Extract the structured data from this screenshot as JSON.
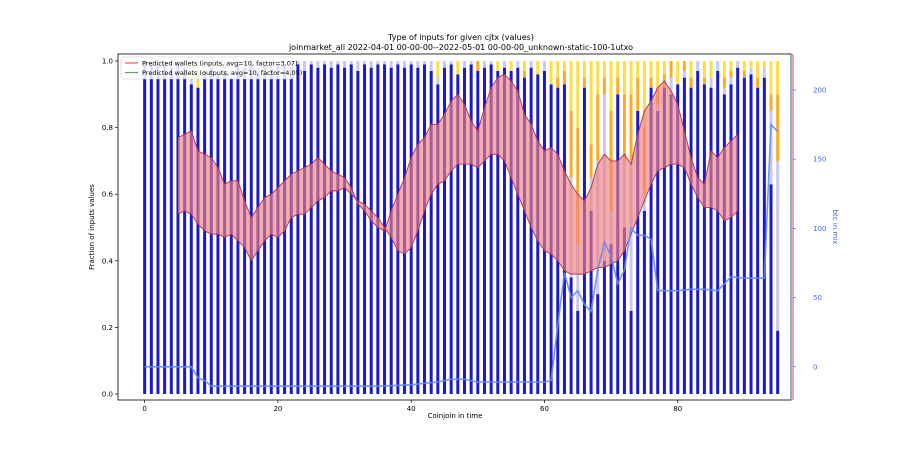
{
  "chart_data": {
    "type": "bar",
    "title": "Type of inputs for given cjtx (values)",
    "subtitle": "joinmarket_all 2022-04-01 00-00-00--2022-05-01 00-00-00_unknown-static-100-1utxo",
    "xlabel": "Coinjoin in time",
    "ylabel": "Fraction of inputs values",
    "y2label": "btc in mix",
    "xlim": [
      -4,
      97
    ],
    "ylim": [
      0,
      1.0
    ],
    "y2lim": [
      -24,
      226
    ],
    "x_ticks": [
      "0",
      "20",
      "40",
      "60",
      "80"
    ],
    "x_tick_values": [
      0,
      20,
      40,
      60,
      80
    ],
    "y_ticks": [
      "0.0",
      "0.2",
      "0.4",
      "0.6",
      "0.8",
      "1.0"
    ],
    "y_tick_values": [
      0,
      0.2,
      0.4,
      0.6,
      0.8,
      1.0
    ],
    "y2_ticks": [
      "0",
      "50",
      "100",
      "150",
      "200"
    ],
    "y2_tick_values": [
      0,
      50,
      100,
      150,
      200
    ],
    "legend": {
      "placement": "top-left",
      "entries": [
        {
          "label": "Predicted wallets (inputs, avg=10, factor=3.07)",
          "color": "#e06060"
        },
        {
          "label": "Predicted wallets (outputs, avg=10, factor=4.05)",
          "color": "#55aa55"
        }
      ]
    },
    "colors": {
      "blue": "#1a1acc",
      "lavender": "#c8c8f0",
      "orange": "#ffaa22",
      "yellow": "#ffdd44",
      "red": "#cc2222",
      "band_fill": "#f08080",
      "band_edge": "#aa3355",
      "btc_line": "#6688ee"
    },
    "bars": [
      {
        "x": 0,
        "blue": 1.0,
        "lav": 0,
        "org": 0,
        "yel": 0
      },
      {
        "x": 1,
        "blue": 0.99,
        "lav": 0.01,
        "org": 0,
        "yel": 0
      },
      {
        "x": 2,
        "blue": 0.99,
        "lav": 0.01,
        "org": 0,
        "yel": 0
      },
      {
        "x": 3,
        "blue": 0.99,
        "lav": 0.01,
        "org": 0,
        "yel": 0
      },
      {
        "x": 4,
        "blue": 0.98,
        "lav": 0.02,
        "org": 0,
        "yel": 0
      },
      {
        "x": 5,
        "blue": 0.99,
        "lav": 0.01,
        "org": 0,
        "yel": 0
      },
      {
        "x": 6,
        "blue": 0.98,
        "lav": 0.02,
        "org": 0,
        "yel": 0
      },
      {
        "x": 7,
        "blue": 0.93,
        "lav": 0.02,
        "org": 0,
        "yel": 0.05
      },
      {
        "x": 8,
        "blue": 0.92,
        "lav": 0,
        "org": 0,
        "yel": 0.08
      },
      {
        "x": 9,
        "blue": 0.97,
        "lav": 0.03,
        "org": 0,
        "yel": 0
      },
      {
        "x": 10,
        "blue": 0.98,
        "lav": 0.02,
        "org": 0,
        "yel": 0
      },
      {
        "x": 11,
        "blue": 0.96,
        "lav": 0.02,
        "org": 0,
        "yel": 0.02
      },
      {
        "x": 12,
        "blue": 0.97,
        "lav": 0.03,
        "org": 0,
        "yel": 0
      },
      {
        "x": 13,
        "blue": 0.95,
        "lav": 0.05,
        "org": 0,
        "yel": 0
      },
      {
        "x": 14,
        "blue": 0.99,
        "lav": 0.01,
        "org": 0,
        "yel": 0
      },
      {
        "x": 15,
        "blue": 0.98,
        "lav": 0.02,
        "org": 0,
        "yel": 0
      },
      {
        "x": 16,
        "blue": 0.99,
        "lav": 0.01,
        "org": 0,
        "yel": 0
      },
      {
        "x": 17,
        "blue": 0.97,
        "lav": 0.03,
        "org": 0,
        "yel": 0
      },
      {
        "x": 18,
        "blue": 0.99,
        "lav": 0.01,
        "org": 0,
        "yel": 0
      },
      {
        "x": 19,
        "blue": 0.98,
        "lav": 0.02,
        "org": 0,
        "yel": 0
      },
      {
        "x": 20,
        "blue": 0.99,
        "lav": 0.01,
        "org": 0,
        "yel": 0
      },
      {
        "x": 21,
        "blue": 0.99,
        "lav": 0.01,
        "org": 0,
        "yel": 0
      },
      {
        "x": 22,
        "blue": 0.98,
        "lav": 0.02,
        "org": 0,
        "yel": 0
      },
      {
        "x": 23,
        "blue": 0.99,
        "lav": 0.01,
        "org": 0,
        "yel": 0
      },
      {
        "x": 24,
        "blue": 0.97,
        "lav": 0.03,
        "org": 0,
        "yel": 0
      },
      {
        "x": 25,
        "blue": 0.99,
        "lav": 0.01,
        "org": 0,
        "yel": 0
      },
      {
        "x": 26,
        "blue": 0.98,
        "lav": 0.02,
        "org": 0,
        "yel": 0
      },
      {
        "x": 27,
        "blue": 0.99,
        "lav": 0.01,
        "org": 0,
        "yel": 0
      },
      {
        "x": 28,
        "blue": 0.98,
        "lav": 0.02,
        "org": 0,
        "yel": 0
      },
      {
        "x": 29,
        "blue": 0.99,
        "lav": 0.01,
        "org": 0,
        "yel": 0
      },
      {
        "x": 30,
        "blue": 0.98,
        "lav": 0.02,
        "org": 0,
        "yel": 0
      },
      {
        "x": 31,
        "blue": 0.99,
        "lav": 0.01,
        "org": 0,
        "yel": 0
      },
      {
        "x": 32,
        "blue": 0.97,
        "lav": 0.03,
        "org": 0,
        "yel": 0
      },
      {
        "x": 33,
        "blue": 0.99,
        "lav": 0.01,
        "org": 0,
        "yel": 0
      },
      {
        "x": 34,
        "blue": 0.98,
        "lav": 0.02,
        "org": 0,
        "yel": 0
      },
      {
        "x": 35,
        "blue": 0.99,
        "lav": 0.01,
        "org": 0,
        "yel": 0
      },
      {
        "x": 36,
        "blue": 0.99,
        "lav": 0.01,
        "org": 0,
        "yel": 0
      },
      {
        "x": 37,
        "blue": 0.98,
        "lav": 0.02,
        "org": 0,
        "yel": 0
      },
      {
        "x": 38,
        "blue": 0.99,
        "lav": 0.01,
        "org": 0,
        "yel": 0
      },
      {
        "x": 39,
        "blue": 0.98,
        "lav": 0.02,
        "org": 0,
        "yel": 0
      },
      {
        "x": 40,
        "blue": 0.99,
        "lav": 0.01,
        "org": 0,
        "yel": 0
      },
      {
        "x": 41,
        "blue": 0.98,
        "lav": 0.02,
        "org": 0,
        "yel": 0
      },
      {
        "x": 42,
        "blue": 0.99,
        "lav": 0.01,
        "org": 0,
        "yel": 0
      },
      {
        "x": 43,
        "blue": 0.97,
        "lav": 0.03,
        "org": 0,
        "yel": 0
      },
      {
        "x": 44,
        "blue": 0.93,
        "lav": 0.02,
        "org": 0,
        "yel": 0.05
      },
      {
        "x": 45,
        "blue": 0.98,
        "lav": 0.02,
        "org": 0,
        "yel": 0
      },
      {
        "x": 46,
        "blue": 0.99,
        "lav": 0.01,
        "org": 0,
        "yel": 0
      },
      {
        "x": 47,
        "blue": 0.96,
        "lav": 0,
        "org": 0,
        "yel": 0.04
      },
      {
        "x": 48,
        "blue": 0.98,
        "lav": 0.02,
        "org": 0,
        "yel": 0
      },
      {
        "x": 49,
        "blue": 0.99,
        "lav": 0.01,
        "org": 0,
        "yel": 0
      },
      {
        "x": 50,
        "blue": 0.97,
        "lav": 0,
        "org": 0.03,
        "yel": 0
      },
      {
        "x": 51,
        "blue": 0.98,
        "lav": 0.02,
        "org": 0,
        "yel": 0
      },
      {
        "x": 52,
        "blue": 0.99,
        "lav": 0.01,
        "org": 0,
        "yel": 0
      },
      {
        "x": 53,
        "blue": 0.97,
        "lav": 0,
        "org": 0,
        "yel": 0.03
      },
      {
        "x": 54,
        "blue": 0.98,
        "lav": 0.02,
        "org": 0,
        "yel": 0
      },
      {
        "x": 55,
        "blue": 0.97,
        "lav": 0,
        "org": 0,
        "yel": 0.03
      },
      {
        "x": 56,
        "blue": 0.98,
        "lav": 0.02,
        "org": 0,
        "yel": 0
      },
      {
        "x": 57,
        "blue": 0.95,
        "lav": 0,
        "org": 0.02,
        "yel": 0.03
      },
      {
        "x": 58,
        "blue": 0.98,
        "lav": 0.02,
        "org": 0,
        "yel": 0
      },
      {
        "x": 59,
        "blue": 0.96,
        "lav": 0,
        "org": 0,
        "yel": 0.04
      },
      {
        "x": 60,
        "blue": 0.97,
        "lav": 0.03,
        "org": 0,
        "yel": 0
      },
      {
        "x": 61,
        "blue": 0.93,
        "lav": 0,
        "org": 0,
        "yel": 0.07
      },
      {
        "x": 62,
        "blue": 0.92,
        "lav": 0,
        "org": 0.03,
        "yel": 0.05
      },
      {
        "x": 63,
        "blue": 0.93,
        "lav": 0,
        "org": 0.04,
        "yel": 0.03
      },
      {
        "x": 64,
        "blue": 0.35,
        "lav": 0.3,
        "org": 0.2,
        "yel": 0.15
      },
      {
        "x": 65,
        "blue": 0.25,
        "lav": 0.2,
        "org": 0.35,
        "yel": 0.2
      },
      {
        "x": 66,
        "blue": 0.92,
        "lav": 0,
        "org": 0.03,
        "yel": 0.05
      },
      {
        "x": 67,
        "blue": 0.55,
        "lav": 0.1,
        "org": 0.1,
        "yel": 0.25
      },
      {
        "x": 68,
        "blue": 0.3,
        "lav": 0.4,
        "org": 0.2,
        "yel": 0.1
      },
      {
        "x": 69,
        "blue": 0.4,
        "lav": 0.5,
        "org": 0.05,
        "yel": 0.05
      },
      {
        "x": 70,
        "blue": 0.45,
        "lav": 0.1,
        "org": 0.3,
        "yel": 0.15
      },
      {
        "x": 71,
        "blue": 0.9,
        "lav": 0,
        "org": 0.05,
        "yel": 0.05
      },
      {
        "x": 72,
        "blue": 0.5,
        "lav": 0.2,
        "org": 0.2,
        "yel": 0.1
      },
      {
        "x": 73,
        "blue": 0.25,
        "lav": 0.45,
        "org": 0.2,
        "yel": 0.1
      },
      {
        "x": 74,
        "blue": 0.85,
        "lav": 0,
        "org": 0.1,
        "yel": 0.05
      },
      {
        "x": 75,
        "blue": 0.55,
        "lav": 0.05,
        "org": 0.2,
        "yel": 0.2
      },
      {
        "x": 76,
        "blue": 0.92,
        "lav": 0,
        "org": 0.03,
        "yel": 0.05
      },
      {
        "x": 77,
        "blue": 0.85,
        "lav": 0.02,
        "org": 0.05,
        "yel": 0.08
      },
      {
        "x": 78,
        "blue": 0.92,
        "lav": 0,
        "org": 0.04,
        "yel": 0.04
      },
      {
        "x": 79,
        "blue": 0.9,
        "lav": 0.05,
        "org": 0.05,
        "yel": 0
      },
      {
        "x": 80,
        "blue": 0.93,
        "lav": 0,
        "org": 0,
        "yel": 0.07
      },
      {
        "x": 81,
        "blue": 0.95,
        "lav": 0.02,
        "org": 0.03,
        "yel": 0
      },
      {
        "x": 82,
        "blue": 0.92,
        "lav": 0,
        "org": 0.03,
        "yel": 0.05
      },
      {
        "x": 83,
        "blue": 0.97,
        "lav": 0.03,
        "org": 0,
        "yel": 0
      },
      {
        "x": 84,
        "blue": 0.93,
        "lav": 0,
        "org": 0.02,
        "yel": 0.05
      },
      {
        "x": 85,
        "blue": 0.92,
        "lav": 0.03,
        "org": 0,
        "yel": 0.05
      },
      {
        "x": 86,
        "blue": 0.97,
        "lav": 0.03,
        "org": 0,
        "yel": 0
      },
      {
        "x": 87,
        "blue": 0.9,
        "lav": 0.02,
        "org": 0.03,
        "yel": 0.05
      },
      {
        "x": 88,
        "blue": 0.93,
        "lav": 0.02,
        "org": 0.02,
        "yel": 0.03
      },
      {
        "x": 89,
        "blue": 0.98,
        "lav": 0.02,
        "org": 0,
        "yel": 0
      },
      {
        "x": 90,
        "blue": 0.95,
        "lav": 0,
        "org": 0.02,
        "yel": 0.03
      },
      {
        "x": 91,
        "blue": 0.96,
        "lav": 0.02,
        "org": 0,
        "yel": 0.02
      },
      {
        "x": 92,
        "blue": 0.92,
        "lav": 0,
        "org": 0.03,
        "yel": 0.05
      },
      {
        "x": 93,
        "blue": 0.95,
        "lav": 0.03,
        "org": 0,
        "yel": 0.02
      },
      {
        "x": 94,
        "blue": 0.63,
        "lav": 0.22,
        "org": 0.05,
        "yel": 0.1
      },
      {
        "x": 95,
        "blue": 0.19,
        "lav": 0.51,
        "org": 0.2,
        "yel": 0.1
      }
    ],
    "band_x": [
      5,
      6,
      7,
      8,
      9,
      10,
      11,
      12,
      13,
      14,
      15,
      16,
      17,
      18,
      19,
      20,
      21,
      22,
      23,
      24,
      25,
      26,
      27,
      28,
      29,
      30,
      31,
      32,
      33,
      34,
      35,
      36,
      37,
      38,
      39,
      40,
      41,
      42,
      43,
      44,
      45,
      46,
      47,
      48,
      49,
      50,
      51,
      52,
      53,
      54,
      55,
      56,
      57,
      58,
      59,
      60,
      61,
      62,
      63,
      64,
      65,
      66,
      67,
      68,
      69,
      70,
      71,
      72,
      73,
      74,
      75,
      76,
      77,
      78,
      79,
      80,
      81,
      82,
      83,
      84,
      85,
      86,
      87,
      88,
      89
    ],
    "band_upper": [
      0.77,
      0.78,
      0.79,
      0.73,
      0.72,
      0.71,
      0.68,
      0.63,
      0.64,
      0.64,
      0.58,
      0.53,
      0.56,
      0.59,
      0.6,
      0.62,
      0.64,
      0.66,
      0.67,
      0.68,
      0.69,
      0.71,
      0.69,
      0.67,
      0.66,
      0.65,
      0.62,
      0.57,
      0.55,
      0.52,
      0.5,
      0.49,
      0.55,
      0.6,
      0.65,
      0.71,
      0.75,
      0.77,
      0.81,
      0.81,
      0.84,
      0.88,
      0.9,
      0.87,
      0.82,
      0.79,
      0.86,
      0.92,
      0.95,
      0.96,
      0.94,
      0.91,
      0.84,
      0.81,
      0.76,
      0.73,
      0.74,
      0.72,
      0.67,
      0.63,
      0.6,
      0.58,
      0.62,
      0.69,
      0.72,
      0.7,
      0.7,
      0.72,
      0.69,
      0.78,
      0.85,
      0.88,
      0.92,
      0.94,
      0.91,
      0.87,
      0.79,
      0.71,
      0.65,
      0.63,
      0.73,
      0.71,
      0.74,
      0.76,
      0.78
    ],
    "band_lower": [
      0.54,
      0.55,
      0.54,
      0.51,
      0.49,
      0.48,
      0.48,
      0.47,
      0.48,
      0.46,
      0.44,
      0.4,
      0.43,
      0.46,
      0.48,
      0.47,
      0.49,
      0.53,
      0.54,
      0.54,
      0.56,
      0.58,
      0.59,
      0.61,
      0.61,
      0.62,
      0.6,
      0.58,
      0.57,
      0.55,
      0.53,
      0.5,
      0.47,
      0.43,
      0.42,
      0.44,
      0.49,
      0.55,
      0.6,
      0.63,
      0.64,
      0.67,
      0.69,
      0.69,
      0.69,
      0.68,
      0.7,
      0.72,
      0.72,
      0.7,
      0.65,
      0.6,
      0.55,
      0.5,
      0.46,
      0.43,
      0.42,
      0.4,
      0.37,
      0.36,
      0.36,
      0.36,
      0.37,
      0.38,
      0.38,
      0.39,
      0.4,
      0.43,
      0.48,
      0.53,
      0.58,
      0.63,
      0.67,
      0.68,
      0.69,
      0.69,
      0.68,
      0.63,
      0.59,
      0.56,
      0.56,
      0.55,
      0.52,
      0.53,
      0.55
    ],
    "btc_x": [
      0,
      1,
      2,
      3,
      4,
      5,
      6,
      7,
      8,
      9,
      10,
      12,
      15,
      20,
      25,
      30,
      35,
      40,
      42,
      44,
      46,
      48,
      50,
      55,
      60,
      61,
      62,
      63,
      64,
      65,
      66,
      67,
      68,
      69,
      70,
      71,
      72,
      73,
      74,
      75,
      76,
      77,
      78,
      80,
      82,
      84,
      86,
      88,
      90,
      92,
      93,
      94,
      95
    ],
    "btc_vals": [
      0,
      0,
      0,
      0,
      0,
      0,
      0,
      0,
      -8,
      -10,
      -14,
      -14,
      -14,
      -14,
      -14,
      -14,
      -14,
      -13,
      -12,
      -11,
      -9,
      -9,
      -11,
      -11,
      -11,
      -10,
      30,
      68,
      50,
      55,
      45,
      40,
      70,
      90,
      80,
      60,
      70,
      100,
      95,
      95,
      92,
      55,
      55,
      55,
      56,
      56,
      55,
      65,
      64,
      64,
      64,
      175,
      170
    ]
  }
}
